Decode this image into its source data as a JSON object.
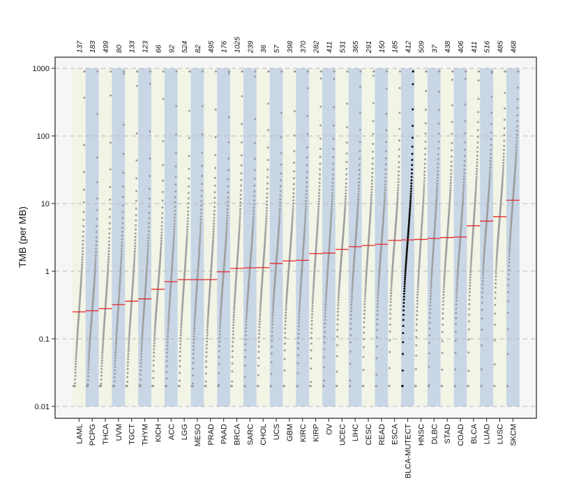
{
  "chart_data": {
    "type": "scatter",
    "title": "",
    "xlabel": "",
    "ylabel": "TMB (per MB)",
    "yscale": "log",
    "ylim": [
      0.01,
      1000
    ],
    "ytick_values": [
      0.01,
      0.1,
      1,
      10,
      100,
      1000
    ],
    "ytick_labels": [
      "0.01",
      "0.1",
      "1",
      "10",
      "100",
      "1000"
    ],
    "grid": true,
    "legend": "none",
    "categories": [
      "LAML",
      "PCPG",
      "THCA",
      "UVM",
      "TGCT",
      "THYM",
      "KICH",
      "ACC",
      "LGG",
      "MESO",
      "PRAD",
      "PAAD",
      "BRCA",
      "SARC",
      "CHOL",
      "UCS",
      "GBM",
      "KIRC",
      "KIRP",
      "OV",
      "UCEC",
      "LIHC",
      "CESC",
      "READ",
      "ESCA",
      "BLCA-MUTECT",
      "HNSC",
      "DLBC",
      "STAD",
      "COAD",
      "BLCA",
      "LUAD",
      "LUSC",
      "SKCM"
    ],
    "sample_counts": [
      "137",
      "183",
      "499",
      "80",
      "133",
      "123",
      "66",
      "92",
      "524",
      "82",
      "495",
      "176",
      "1025",
      "239",
      "36",
      "57",
      "398",
      "370",
      "282",
      "411",
      "531",
      "365",
      "291",
      "150",
      "185",
      "412",
      "509",
      "37",
      "438",
      "406",
      "411",
      "516",
      "485",
      "468"
    ],
    "median_tmb": [
      0.25,
      0.26,
      0.28,
      0.32,
      0.36,
      0.39,
      0.54,
      0.7,
      0.75,
      0.75,
      0.75,
      0.98,
      1.1,
      1.12,
      1.13,
      1.3,
      1.42,
      1.45,
      1.82,
      1.85,
      2.1,
      2.3,
      2.4,
      2.5,
      2.85,
      2.9,
      2.95,
      3.05,
      3.15,
      3.2,
      4.7,
      5.5,
      6.4,
      11.2
    ],
    "highlight_category": "BLCA-MUTECT",
    "colors": {
      "points": "#9e9e9e",
      "highlight_points": "#111111",
      "median_line": "#e8262b",
      "band_light": "#f2f4e6",
      "band_blue": "#c8d6e6",
      "panel_bg": "#f6f6f6",
      "grid": "#b8b8b8",
      "frame": "#222222"
    }
  }
}
